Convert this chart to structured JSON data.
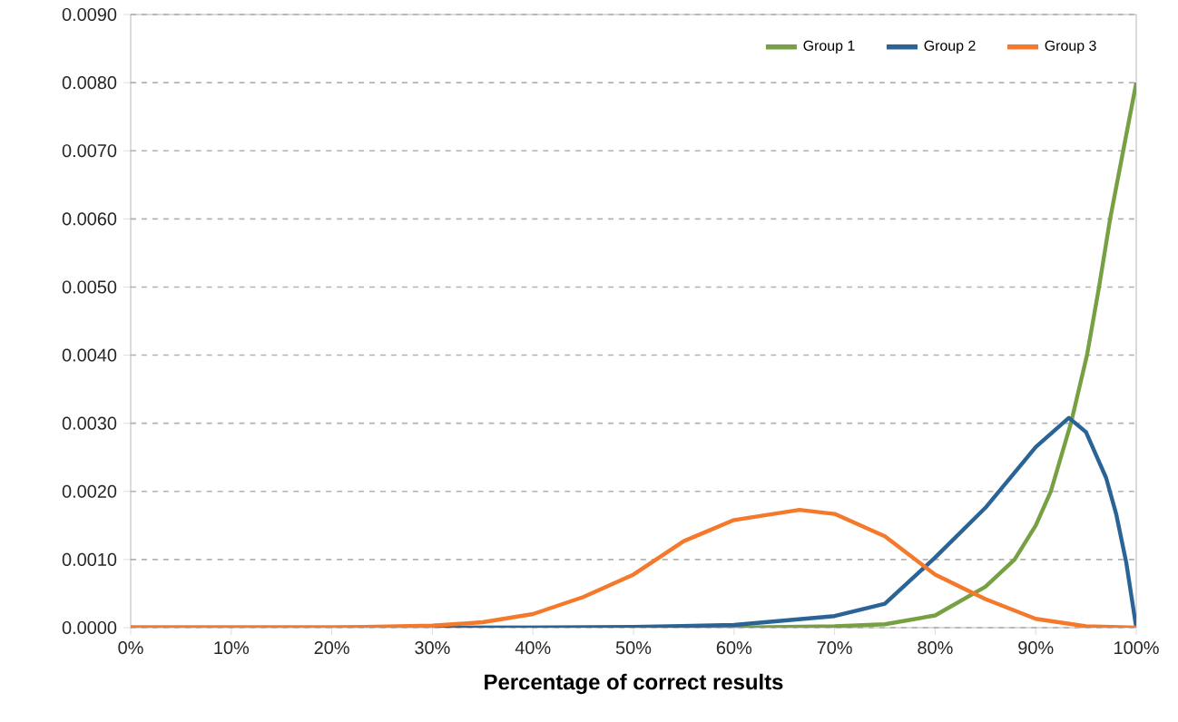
{
  "chart_data": {
    "type": "line",
    "xlabel": "Percentage of correct results",
    "xlim": [
      0,
      100
    ],
    "ylim": [
      0,
      0.009
    ],
    "xticks": [
      {
        "value": 0,
        "label": "0%"
      },
      {
        "value": 10,
        "label": "10%"
      },
      {
        "value": 20,
        "label": "20%"
      },
      {
        "value": 30,
        "label": "30%"
      },
      {
        "value": 40,
        "label": "40%"
      },
      {
        "value": 50,
        "label": "50%"
      },
      {
        "value": 60,
        "label": "60%"
      },
      {
        "value": 70,
        "label": "70%"
      },
      {
        "value": 80,
        "label": "80%"
      },
      {
        "value": 90,
        "label": "90%"
      },
      {
        "value": 100,
        "label": "100%"
      }
    ],
    "yticks": [
      {
        "value": 0,
        "label": "0.0000"
      },
      {
        "value": 0.001,
        "label": "0.0010"
      },
      {
        "value": 0.002,
        "label": "0.0020"
      },
      {
        "value": 0.003,
        "label": "0.0030"
      },
      {
        "value": 0.004,
        "label": "0.0040"
      },
      {
        "value": 0.005,
        "label": "0.0050"
      },
      {
        "value": 0.006,
        "label": "0.0060"
      },
      {
        "value": 0.007,
        "label": "0.0070"
      },
      {
        "value": 0.008,
        "label": "0.0080"
      },
      {
        "value": 0.009,
        "label": "0.0090"
      }
    ],
    "grid": "y",
    "legend": "top right",
    "marker": "none",
    "line_style": "solid",
    "series": [
      {
        "name": "Group 1",
        "color": "#77a043",
        "x": [
          0,
          50,
          60,
          70,
          75,
          80,
          85,
          87.9,
          90,
          91.5,
          93.5,
          95.1,
          96.3,
          97.4,
          98.7,
          100
        ],
        "values": [
          0,
          0,
          0,
          2e-05,
          5e-05,
          0.00018,
          0.0006,
          0.001,
          0.0015,
          0.002,
          0.003,
          0.004,
          0.005,
          0.006,
          0.007,
          0.008
        ]
      },
      {
        "name": "Group 2",
        "color": "#2a6496",
        "x": [
          0,
          40,
          50,
          60,
          70,
          75,
          80,
          85,
          90,
          93.3,
          95,
          97,
          98,
          99,
          100
        ],
        "values": [
          0,
          0,
          1e-05,
          4e-05,
          0.00017,
          0.00035,
          0.00103,
          0.00176,
          0.00265,
          0.00308,
          0.00287,
          0.0022,
          0.00167,
          0.00096,
          0
        ]
      },
      {
        "name": "Group 3",
        "color": "#f5792a",
        "x": [
          0,
          20,
          30,
          35,
          40,
          45,
          50,
          55,
          60,
          66.5,
          70,
          75,
          80,
          85,
          90,
          95,
          100
        ],
        "values": [
          0,
          0,
          3e-05,
          8e-05,
          0.0002,
          0.00045,
          0.00078,
          0.00127,
          0.00158,
          0.00173,
          0.00167,
          0.00134,
          0.00078,
          0.00042,
          0.00013,
          2e-05,
          0
        ]
      }
    ]
  }
}
